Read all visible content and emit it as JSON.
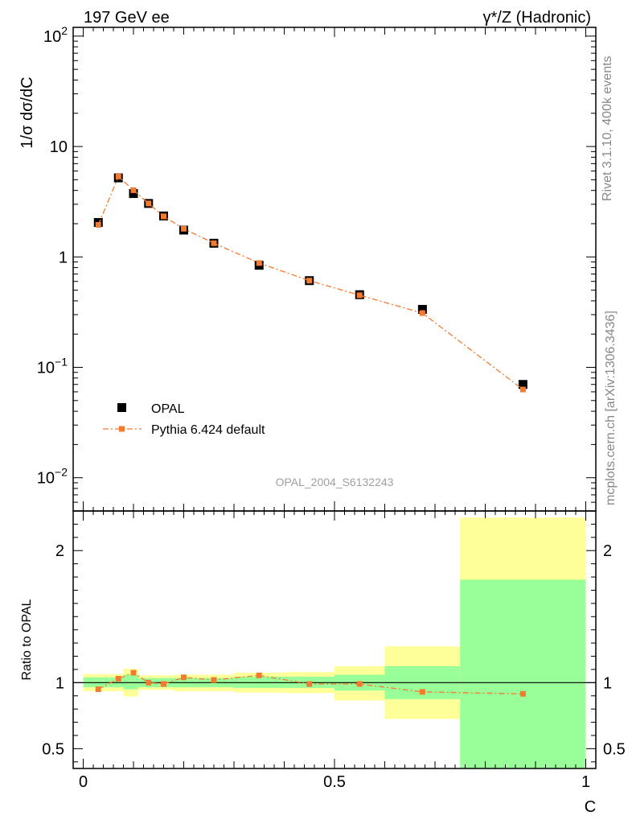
{
  "header": {
    "left": "197 GeV ee",
    "right": "γ*/Z (Hadronic)"
  },
  "side": {
    "rivet": "Rivet 3.1.10,  400k events",
    "mcplots": "mcplots.cern.ch [arXiv:1306.3436]"
  },
  "watermark": "OPAL_2004_S6132243",
  "colors": {
    "data": "#000000",
    "mc": "#f47a30",
    "band_inner": "#99ff99",
    "band_outer": "#ffff99"
  },
  "chart_data": [
    {
      "type": "scatter",
      "ylabel": "1/σ dσ/dC",
      "yscale": "log",
      "ylim": [
        0.005,
        120
      ],
      "xlim": [
        -0.02,
        1.02
      ],
      "yticks": [
        {
          "value": 0.01,
          "base": "10",
          "exp": "−2"
        },
        {
          "value": 0.1,
          "base": "10",
          "exp": "−1"
        },
        {
          "value": 1,
          "base": "1",
          "exp": ""
        },
        {
          "value": 10,
          "base": "10",
          "exp": ""
        },
        {
          "value": 100,
          "base": "10",
          "exp": "2"
        }
      ],
      "legend": {
        "placement": "lower-left",
        "entries": [
          "OPAL",
          "Pythia 6.424 default"
        ]
      },
      "series": [
        {
          "name": "OPAL",
          "style": "marker",
          "x": [
            0.03,
            0.07,
            0.1,
            0.13,
            0.16,
            0.2,
            0.26,
            0.35,
            0.45,
            0.55,
            0.675,
            0.875
          ],
          "y": [
            2.05,
            5.2,
            3.75,
            3.05,
            2.35,
            1.75,
            1.33,
            0.84,
            0.61,
            0.455,
            0.335,
            0.07
          ]
        },
        {
          "name": "Pythia 6.424 default",
          "style": "dashdot-line-marker",
          "x": [
            0.03,
            0.07,
            0.1,
            0.13,
            0.16,
            0.2,
            0.26,
            0.35,
            0.45,
            0.55,
            0.675,
            0.875
          ],
          "y": [
            1.95,
            5.35,
            4.02,
            3.05,
            2.33,
            1.8,
            1.33,
            0.88,
            0.61,
            0.45,
            0.31,
            0.063
          ]
        }
      ]
    },
    {
      "type": "scatter",
      "ylabel": "Ratio to OPAL",
      "xlabel": "C",
      "ylim": [
        0.35,
        2.3
      ],
      "xlim": [
        -0.02,
        1.02
      ],
      "yticks": [
        0.5,
        1,
        2
      ],
      "xticks": [
        0,
        0.5,
        1
      ],
      "bands": [
        {
          "x0": 0.0,
          "x1": 0.05,
          "in_lo": 0.965,
          "in_hi": 1.04,
          "out_lo": 0.935,
          "out_hi": 1.065
        },
        {
          "x0": 0.05,
          "x1": 0.08,
          "in_lo": 0.965,
          "in_hi": 1.04,
          "out_lo": 0.935,
          "out_hi": 1.065
        },
        {
          "x0": 0.08,
          "x1": 0.11,
          "in_lo": 0.95,
          "in_hi": 1.06,
          "out_lo": 0.895,
          "out_hi": 1.105
        },
        {
          "x0": 0.11,
          "x1": 0.14,
          "in_lo": 0.965,
          "in_hi": 1.035,
          "out_lo": 0.945,
          "out_hi": 1.055
        },
        {
          "x0": 0.14,
          "x1": 0.18,
          "in_lo": 0.965,
          "in_hi": 1.035,
          "out_lo": 0.945,
          "out_hi": 1.055
        },
        {
          "x0": 0.18,
          "x1": 0.22,
          "in_lo": 0.965,
          "in_hi": 1.035,
          "out_lo": 0.935,
          "out_hi": 1.06
        },
        {
          "x0": 0.22,
          "x1": 0.3,
          "in_lo": 0.965,
          "in_hi": 1.035,
          "out_lo": 0.935,
          "out_hi": 1.06
        },
        {
          "x0": 0.3,
          "x1": 0.4,
          "in_lo": 0.96,
          "in_hi": 1.045,
          "out_lo": 0.925,
          "out_hi": 1.075
        },
        {
          "x0": 0.4,
          "x1": 0.5,
          "in_lo": 0.96,
          "in_hi": 1.045,
          "out_lo": 0.92,
          "out_hi": 1.08
        },
        {
          "x0": 0.5,
          "x1": 0.6,
          "in_lo": 0.94,
          "in_hi": 1.06,
          "out_lo": 0.865,
          "out_hi": 1.125
        },
        {
          "x0": 0.6,
          "x1": 0.75,
          "in_lo": 0.875,
          "in_hi": 1.125,
          "out_lo": 0.725,
          "out_hi": 1.275
        },
        {
          "x0": 0.75,
          "x1": 1.0,
          "in_lo": 0.35,
          "in_hi": 1.78,
          "out_lo": 0.35,
          "out_hi": 2.25
        }
      ],
      "reference": 1,
      "series": [
        {
          "name": "Pythia 6.424 default",
          "style": "dashdot-line-marker",
          "x": [
            0.03,
            0.07,
            0.1,
            0.13,
            0.16,
            0.2,
            0.26,
            0.35,
            0.45,
            0.55,
            0.675,
            0.875
          ],
          "y": [
            0.95,
            1.03,
            1.075,
            1.0,
            0.99,
            1.04,
            1.02,
            1.055,
            0.99,
            0.99,
            0.93,
            0.915
          ]
        }
      ]
    }
  ]
}
